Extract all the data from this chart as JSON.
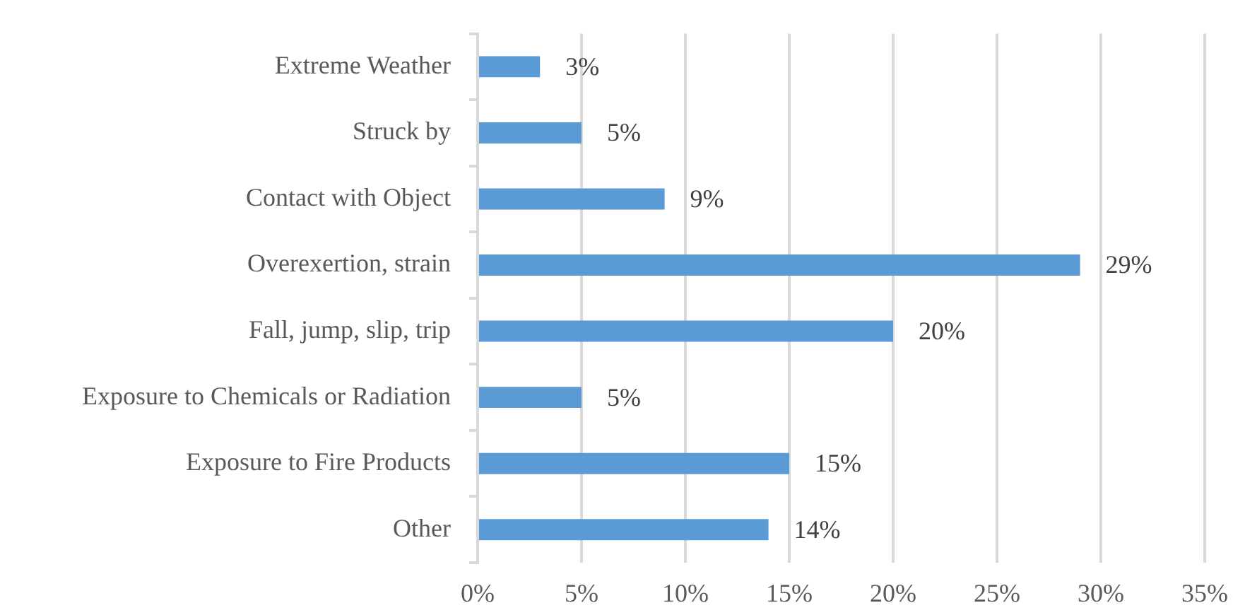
{
  "chart_data": {
    "type": "bar",
    "orientation": "horizontal",
    "categories": [
      "Extreme Weather",
      "Struck by",
      "Contact with Object",
      "Overexertion, strain",
      "Fall, jump, slip, trip",
      "Exposure to Chemicals or Radiation",
      "Exposure to Fire Products",
      "Other"
    ],
    "values": [
      3,
      5,
      9,
      29,
      20,
      5,
      15,
      14
    ],
    "value_labels": [
      "3%",
      "5%",
      "9%",
      "29%",
      "20%",
      "5%",
      "15%",
      "14%"
    ],
    "color": "#5b9bd5",
    "xlim": [
      0,
      35
    ],
    "xticks": [
      {
        "value": 0,
        "label": "0%"
      },
      {
        "value": 5,
        "label": "5%"
      },
      {
        "value": 10,
        "label": "10%"
      },
      {
        "value": 15,
        "label": "15%"
      },
      {
        "value": 20,
        "label": "20%"
      },
      {
        "value": 25,
        "label": "25%"
      },
      {
        "value": 30,
        "label": "30%"
      },
      {
        "value": 35,
        "label": "35%"
      }
    ],
    "grid": "x"
  }
}
